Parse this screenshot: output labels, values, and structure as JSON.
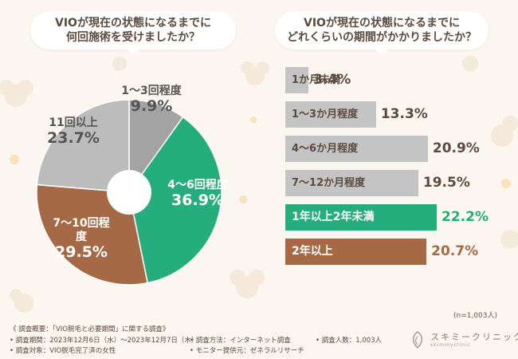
{
  "questions": {
    "q1": "VIOが現在の状態になるまでに\n何回施術を受けましたか？",
    "q2": "VIOが現在の状態になるまでに\nどれくらいの期間がかかりましたか？"
  },
  "chart_data": [
    {
      "type": "pie",
      "title": "VIOが現在の状態になるまでに何回施術を受けましたか？",
      "labels": [
        "1〜3回程度",
        "4〜6回程度",
        "7〜10回程度",
        "11回以上"
      ],
      "values": [
        9.9,
        36.9,
        29.5,
        23.7
      ],
      "value_labels": [
        "9.9%",
        "36.9%",
        "29.5%",
        "23.7%"
      ],
      "colors": [
        "#a3a3a3",
        "#26ad7d",
        "#a56a45",
        "#bcbcbc"
      ]
    },
    {
      "type": "bar",
      "orientation": "horizontal",
      "title": "VIOが現在の状態になるまでにどれくらいの期間がかかりましたか？",
      "categories": [
        "1か月未満",
        "1〜3か月程度",
        "4〜6か月程度",
        "7〜12か月程度",
        "1年以上2年未満",
        "2年以上"
      ],
      "values": [
        3.4,
        13.3,
        20.9,
        19.5,
        22.2,
        20.7
      ],
      "value_labels": [
        "3.4%",
        "13.3%",
        "20.9%",
        "19.5%",
        "22.2%",
        "20.7%"
      ],
      "colors": [
        "#c4c4c4",
        "#c4c4c4",
        "#c4c4c4",
        "#c4c4c4",
        "#26ad7d",
        "#a56a45"
      ],
      "note": "(n=1,003人)"
    }
  ],
  "footer": {
    "overview": "《 調査概要：「VIO脱毛と必要期間」に関する調査》",
    "period": "• 調査期間：2023年12月6日（水）〜2023年12月7日（木）",
    "method": "• 調査方法：インターネット調査",
    "count": "• 調査人数：1,003人",
    "target": "• 調査対象：VIO脱毛完了済の女性",
    "provider": "• モニター提供元：ゼネラルリサーチ"
  },
  "logo": {
    "name": "スキミークリニック",
    "sub": "skimmyclinic"
  }
}
